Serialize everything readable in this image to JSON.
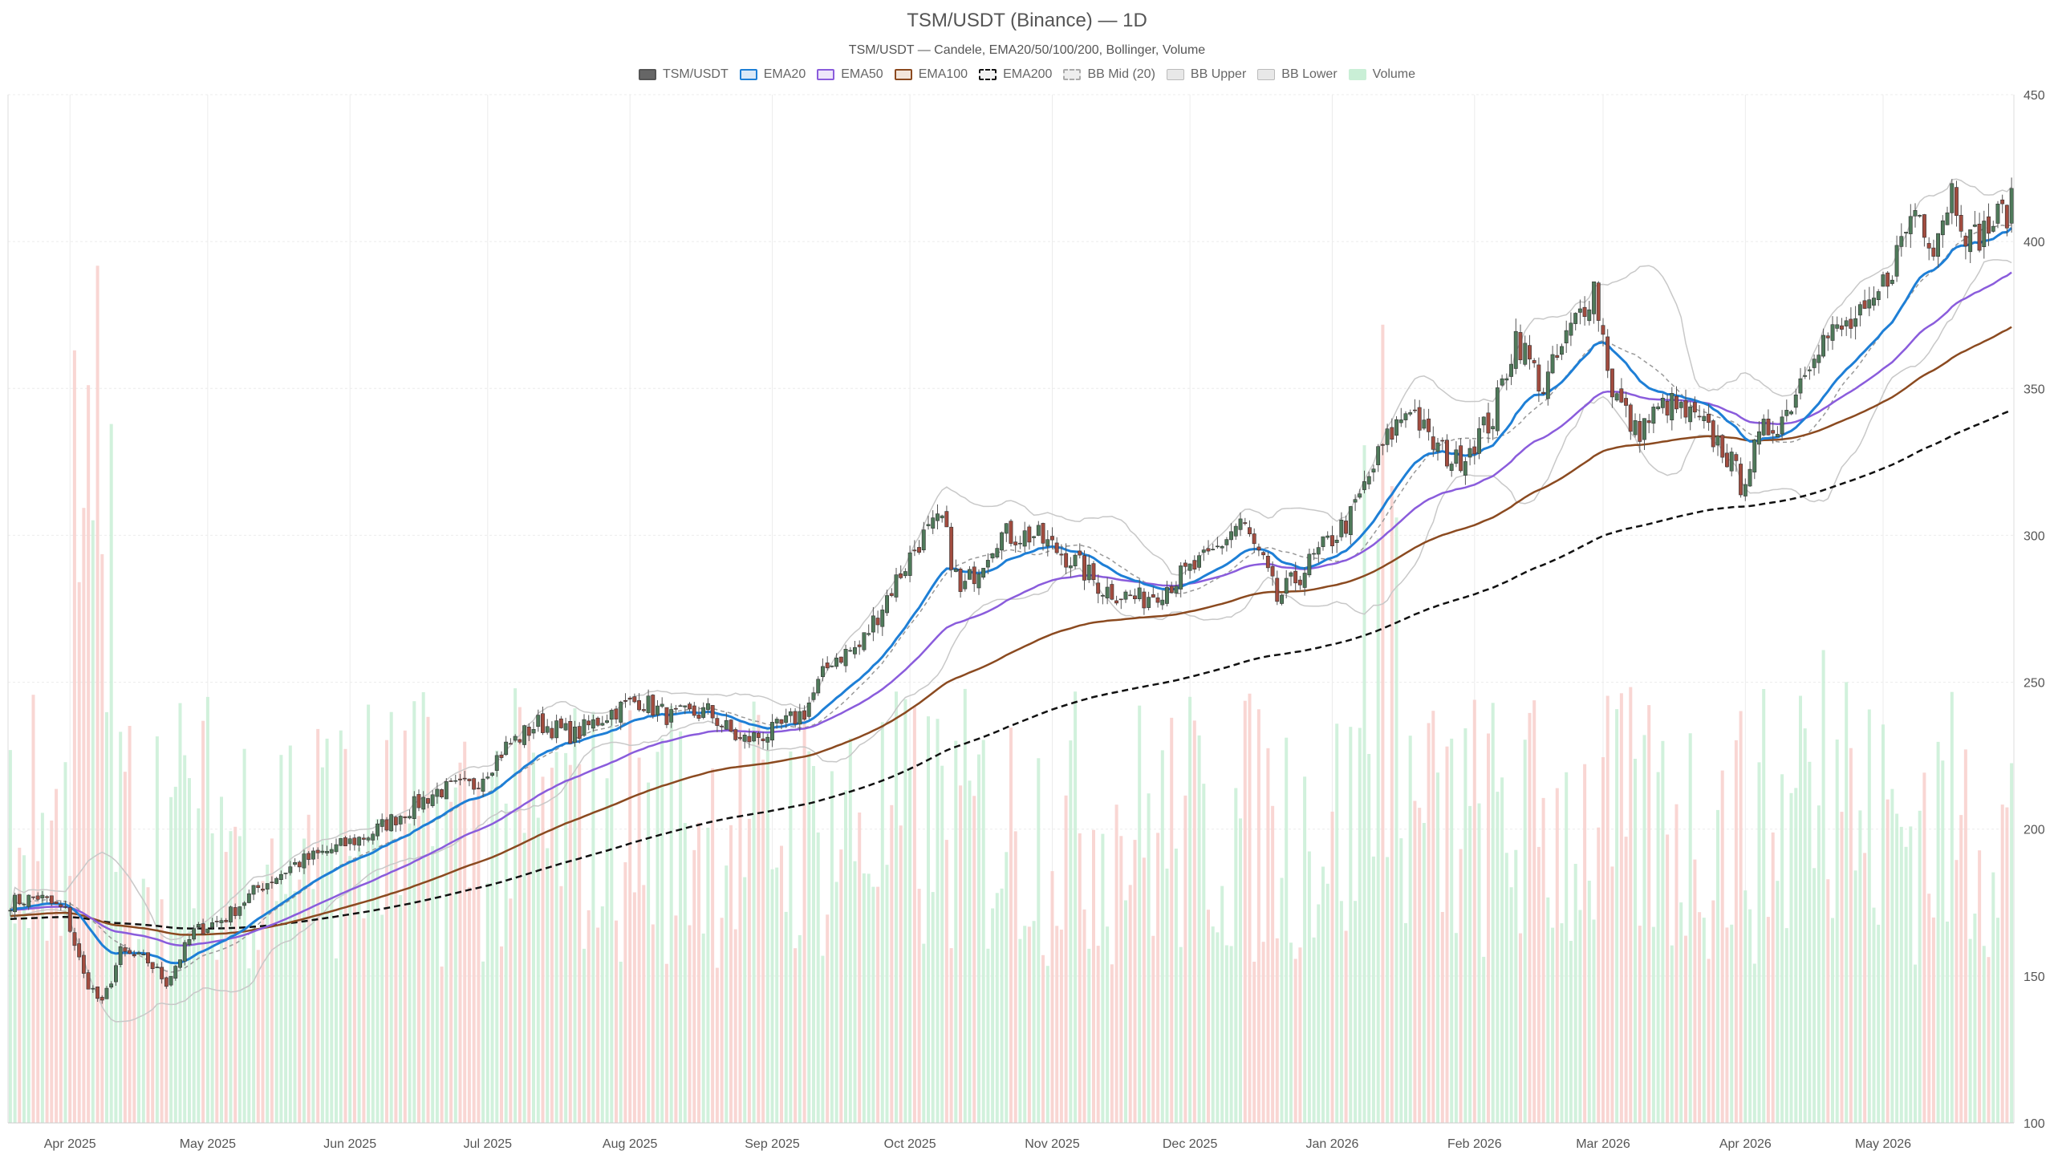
{
  "chart_data": {
    "type": "candlestick",
    "title": "TSM/USDT (Binance) — 1D",
    "subtitle": "TSM/USDT — Candele, EMA20/50/100/200, Bollinger, Volume",
    "legend": [
      {
        "label": "TSM/USDT",
        "style": "solid-dark"
      },
      {
        "label": "EMA20",
        "style": "blue"
      },
      {
        "label": "EMA50",
        "style": "purple"
      },
      {
        "label": "EMA100",
        "style": "brown"
      },
      {
        "label": "EMA200",
        "style": "black-dashed"
      },
      {
        "label": "BB Mid (20)",
        "style": "gray-dashed"
      },
      {
        "label": "BB Upper",
        "style": "light-gray"
      },
      {
        "label": "BB Lower",
        "style": "light-gray"
      },
      {
        "label": "Volume",
        "style": "green-light"
      }
    ],
    "y_axis": {
      "position": "right",
      "min": 100,
      "max": 450,
      "ticks": [
        100,
        150,
        200,
        250,
        300,
        350,
        400,
        450
      ]
    },
    "x_axis": {
      "start_date": "2025-03-19",
      "end_date": "2026-05-29",
      "ticks": [
        {
          "label": "Apr 2025",
          "date": "2025-04-01"
        },
        {
          "label": "May 2025",
          "date": "2025-05-01"
        },
        {
          "label": "Jun 2025",
          "date": "2025-06-01"
        },
        {
          "label": "Jul 2025",
          "date": "2025-07-01"
        },
        {
          "label": "Aug 2025",
          "date": "2025-08-01"
        },
        {
          "label": "Sep 2025",
          "date": "2025-09-01"
        },
        {
          "label": "Oct 2025",
          "date": "2025-10-01"
        },
        {
          "label": "Nov 2025",
          "date": "2025-11-01"
        },
        {
          "label": "Dec 2025",
          "date": "2025-12-01"
        },
        {
          "label": "Jan 2026",
          "date": "2026-01-01"
        },
        {
          "label": "Feb 2026",
          "date": "2026-02-01"
        },
        {
          "label": "Mar 2026",
          "date": "2026-03-01"
        },
        {
          "label": "Apr 2026",
          "date": "2026-04-01"
        },
        {
          "label": "May 2026",
          "date": "2026-05-01"
        }
      ]
    },
    "close_anchors": [
      [
        "2025-03-19",
        175
      ],
      [
        "2025-03-25",
        177
      ],
      [
        "2025-03-31",
        172
      ],
      [
        "2025-04-04",
        150
      ],
      [
        "2025-04-08",
        140
      ],
      [
        "2025-04-12",
        158
      ],
      [
        "2025-04-18",
        155
      ],
      [
        "2025-04-22",
        148
      ],
      [
        "2025-04-28",
        165
      ],
      [
        "2025-05-05",
        170
      ],
      [
        "2025-05-12",
        180
      ],
      [
        "2025-05-20",
        188
      ],
      [
        "2025-05-28",
        193
      ],
      [
        "2025-06-05",
        198
      ],
      [
        "2025-06-12",
        205
      ],
      [
        "2025-06-20",
        213
      ],
      [
        "2025-06-28",
        215
      ],
      [
        "2025-07-05",
        228
      ],
      [
        "2025-07-12",
        236
      ],
      [
        "2025-07-20",
        232
      ],
      [
        "2025-07-28",
        240
      ],
      [
        "2025-08-03",
        244
      ],
      [
        "2025-08-10",
        238
      ],
      [
        "2025-08-18",
        240
      ],
      [
        "2025-08-25",
        230
      ],
      [
        "2025-09-01",
        233
      ],
      [
        "2025-09-08",
        240
      ],
      [
        "2025-09-14",
        258
      ],
      [
        "2025-09-20",
        262
      ],
      [
        "2025-09-27",
        282
      ],
      [
        "2025-10-03",
        298
      ],
      [
        "2025-10-08",
        305
      ],
      [
        "2025-10-12",
        280
      ],
      [
        "2025-10-20",
        300
      ],
      [
        "2025-10-28",
        300
      ],
      [
        "2025-11-05",
        292
      ],
      [
        "2025-11-12",
        282
      ],
      [
        "2025-11-20",
        278
      ],
      [
        "2025-11-26",
        283
      ],
      [
        "2025-12-05",
        292
      ],
      [
        "2025-12-12",
        305
      ],
      [
        "2025-12-17",
        290
      ],
      [
        "2025-12-20",
        278
      ],
      [
        "2025-12-28",
        292
      ],
      [
        "2026-01-05",
        306
      ],
      [
        "2026-01-12",
        330
      ],
      [
        "2026-01-18",
        345
      ],
      [
        "2026-01-22",
        332
      ],
      [
        "2026-01-28",
        325
      ],
      [
        "2026-02-05",
        340
      ],
      [
        "2026-02-10",
        368
      ],
      [
        "2026-02-16",
        350
      ],
      [
        "2026-02-22",
        370
      ],
      [
        "2026-02-27",
        385
      ],
      [
        "2026-03-03",
        350
      ],
      [
        "2026-03-08",
        335
      ],
      [
        "2026-03-15",
        345
      ],
      [
        "2026-03-22",
        338
      ],
      [
        "2026-03-27",
        330
      ],
      [
        "2026-03-31",
        318
      ],
      [
        "2026-04-05",
        335
      ],
      [
        "2026-04-10",
        342
      ],
      [
        "2026-04-16",
        365
      ],
      [
        "2026-04-22",
        370
      ],
      [
        "2026-04-28",
        375
      ],
      [
        "2026-05-03",
        392
      ],
      [
        "2026-05-08",
        412
      ],
      [
        "2026-05-12",
        400
      ],
      [
        "2026-05-16",
        418
      ],
      [
        "2026-05-20",
        400
      ],
      [
        "2026-05-24",
        405
      ],
      [
        "2026-05-29",
        412
      ]
    ],
    "volume_note": "daily volume bars at bottom; green = up day, red = down day; spikes early Apr 2025, mid Jan 2026, mid Apr 2026"
  }
}
